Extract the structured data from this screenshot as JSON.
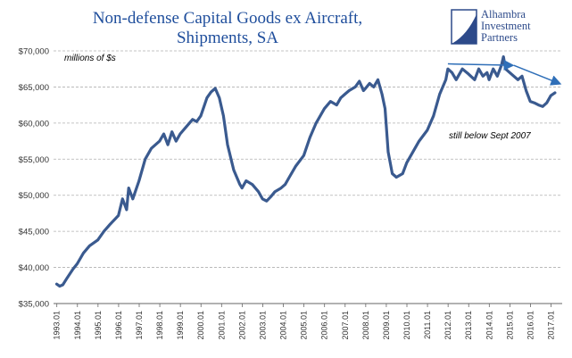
{
  "colors": {
    "title": "#1f4e9c",
    "series": "#3a5a8f",
    "trend": "#2f6fb8",
    "grid": "#b0b0b0",
    "logo": "#2d4a8a"
  },
  "logo": {
    "line1": "Alhambra",
    "line2": "Investment",
    "line3": "Partners"
  },
  "chart_data": {
    "type": "line",
    "title_line1": "Non-defense Capital Goods ex Aircraft,",
    "title_line2": "Shipments, SA",
    "unit_label": "millions of $s",
    "annotation": "still below Sept 2007",
    "y_ticks": [
      "$35,000",
      "$40,000",
      "$45,000",
      "$50,000",
      "$55,000",
      "$60,000",
      "$65,000",
      "$70,000"
    ],
    "y_values": [
      35000,
      40000,
      45000,
      50000,
      55000,
      60000,
      65000,
      70000
    ],
    "ylim": [
      35000,
      70000
    ],
    "x_ticks": [
      "1993.01",
      "1994.01",
      "1995.01",
      "1996.01",
      "1997.01",
      "1998.01",
      "1999.01",
      "2000.01",
      "2001.01",
      "2002.01",
      "2003.01",
      "2004.01",
      "2005.01",
      "2006.01",
      "2007.01",
      "2008.01",
      "2009.01",
      "2010.01",
      "2011.01",
      "2012.01",
      "2013.01",
      "2014.01",
      "2015.01",
      "2016.01",
      "2017.01"
    ],
    "xlim": [
      1993.0,
      2017.5
    ],
    "grid": "horizontal dashed",
    "series": [
      {
        "x": [
          1993.0,
          1993.15,
          1993.3,
          1993.5,
          1993.8,
          1994.0,
          1994.3,
          1994.6,
          1995.0,
          1995.3,
          1995.6,
          1996.0,
          1996.2,
          1996.4,
          1996.5,
          1996.7,
          1997.0,
          1997.3,
          1997.6,
          1998.0,
          1998.2,
          1998.4,
          1998.6,
          1998.8,
          1999.0,
          1999.3,
          1999.6,
          1999.8,
          2000.0,
          2000.3,
          2000.5,
          2000.7,
          2000.9,
          2001.1,
          2001.3,
          2001.6,
          2001.9,
          2002.0,
          2002.2,
          2002.5,
          2002.8,
          2003.0,
          2003.2,
          2003.4,
          2003.6,
          2003.9,
          2004.1,
          2004.3,
          2004.6,
          2005.0,
          2005.3,
          2005.6,
          2006.0,
          2006.3,
          2006.6,
          2006.8,
          2007.0,
          2007.2,
          2007.5,
          2007.7,
          2007.9,
          2008.0,
          2008.2,
          2008.4,
          2008.6,
          2008.8,
          2008.95,
          2009.1,
          2009.3,
          2009.5,
          2009.8,
          2010.0,
          2010.3,
          2010.6,
          2011.0,
          2011.3,
          2011.6,
          2011.9,
          2012.0,
          2012.2,
          2012.4,
          2012.7,
          2013.0,
          2013.3,
          2013.5,
          2013.7,
          2013.9,
          2014.0,
          2014.2,
          2014.4,
          2014.6,
          2014.7,
          2014.8,
          2015.0,
          2015.2,
          2015.4,
          2015.6,
          2015.8,
          2016.0,
          2016.2,
          2016.4,
          2016.6,
          2016.8,
          2017.0,
          2017.2
        ],
        "values": [
          37700,
          37400,
          37600,
          38500,
          39800,
          40500,
          42000,
          43000,
          43800,
          45000,
          46000,
          47200,
          49500,
          48000,
          51000,
          49500,
          52000,
          55000,
          56500,
          57500,
          58500,
          57000,
          58800,
          57500,
          58500,
          59500,
          60500,
          60200,
          61000,
          63500,
          64300,
          64800,
          63500,
          61000,
          57000,
          53500,
          51500,
          51000,
          52000,
          51500,
          50500,
          49500,
          49200,
          49800,
          50500,
          51000,
          51500,
          52500,
          54000,
          55500,
          58000,
          60000,
          62000,
          63000,
          62500,
          63500,
          64000,
          64500,
          65000,
          65800,
          64500,
          64800,
          65500,
          65000,
          66000,
          64000,
          62000,
          56000,
          53000,
          52500,
          53000,
          54500,
          56000,
          57500,
          59000,
          61000,
          64000,
          66000,
          67500,
          67000,
          66000,
          67500,
          66800,
          66000,
          67500,
          66500,
          67000,
          66000,
          67500,
          66500,
          68000,
          69200,
          67500,
          67000,
          66500,
          66000,
          66500,
          64500,
          63000,
          62800,
          62500,
          62300,
          62800,
          63800,
          64200
        ]
      }
    ]
  }
}
